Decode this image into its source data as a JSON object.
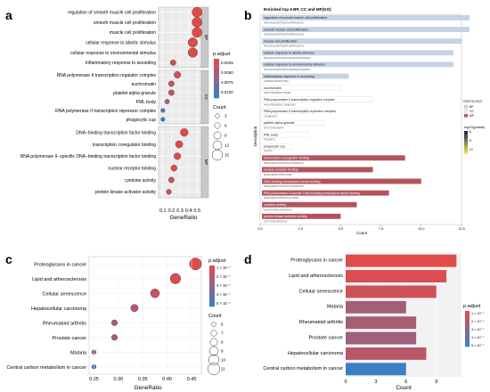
{
  "panel_labels": {
    "a": "a",
    "b": "b",
    "c": "c",
    "d": "d"
  },
  "panel_a": {
    "xlabel": "GeneRatio",
    "xticks": [
      "0.1",
      "0.2",
      "0.3",
      "0.4",
      "0.5"
    ],
    "legend_color_title": "p.adjust",
    "legend_color_ticks": [
      "0.0025",
      "0.0050",
      "0.0075",
      "0.0100"
    ],
    "legend_size_title": "Count",
    "legend_size_ticks": [
      "3",
      "6",
      "9",
      "12",
      "15"
    ]
  },
  "panel_b": {
    "title": "Enriched top 6 BP, CC and MF(GO)",
    "ylabel": "Description",
    "xlabel": "Count",
    "xticks": [
      "0.0",
      "2.5",
      "5.0",
      "7.5",
      "10.0",
      "12.5"
    ],
    "legend_ontology_title": "ONTOLOGY",
    "legend_ontology_items": [
      "BP",
      "CC",
      "MF"
    ],
    "legend_color_title": "-log10(pvalue)",
    "legend_color_ticks": [
      "6",
      "8",
      "10"
    ]
  },
  "panel_c": {
    "xlabel": "GeneRatio",
    "xticks": [
      "0.25",
      "0.30",
      "0.35",
      "0.40",
      "0.45"
    ],
    "legend_color_title": "p.adjust",
    "legend_color_ticks": [
      "1 × 10⁻⁷",
      "2 × 10⁻⁷",
      "3 × 10⁻⁷",
      "4 × 10⁻⁷",
      "5 × 10⁻⁷"
    ],
    "legend_size_title": "Count",
    "legend_size_ticks": [
      "6",
      "7",
      "8",
      "9",
      "10",
      "11"
    ]
  },
  "panel_d": {
    "xlabel": "Count",
    "xticks": [
      "0",
      "3",
      "6",
      "9"
    ],
    "legend_color_title": "p.adjust",
    "legend_color_ticks": [
      "1 × 10⁻⁷",
      "2 × 10⁻⁷",
      "3 × 10⁻⁷",
      "4 × 10⁻⁷",
      "5 × 10⁻⁷"
    ]
  },
  "chart_data": [
    {
      "type": "scatter",
      "panel": "a",
      "xlabel": "GeneRatio",
      "xlim": [
        0.05,
        0.55
      ],
      "groups": [
        {
          "name": "BP",
          "items": [
            {
              "label": "regulation of smooth muscle cell proliferation",
              "x": 0.5,
              "count": 14,
              "padj": 0.0003
            },
            {
              "label": "smooth muscle cell proliferation",
              "x": 0.5,
              "count": 14,
              "padj": 0.0003
            },
            {
              "label": "muscle cell proliferation",
              "x": 0.5,
              "count": 14,
              "padj": 0.0004
            },
            {
              "label": "cellular response to abiotic stimulus",
              "x": 0.45,
              "count": 13,
              "padj": 0.0005
            },
            {
              "label": "cellular response to environmental stimulus",
              "x": 0.45,
              "count": 13,
              "padj": 0.0005
            },
            {
              "label": "inflammatory response to wounding",
              "x": 0.22,
              "count": 6,
              "padj": 0.0012
            }
          ]
        },
        {
          "name": "CC",
          "items": [
            {
              "label": "RNA polymerase II transcription regulator complex",
              "x": 0.27,
              "count": 8,
              "padj": 0.0012
            },
            {
              "label": "euchromatin",
              "x": 0.2,
              "count": 6,
              "padj": 0.0015
            },
            {
              "label": "platelet alpha granule",
              "x": 0.2,
              "count": 6,
              "padj": 0.002
            },
            {
              "label": "PML body",
              "x": 0.15,
              "count": 4,
              "padj": 0.004
            },
            {
              "label": "RNA polymerase II transcription repressor complex",
              "x": 0.1,
              "count": 3,
              "padj": 0.009
            },
            {
              "label": "phagocytic cup",
              "x": 0.1,
              "count": 3,
              "padj": 0.011
            }
          ]
        },
        {
          "name": "MF",
          "items": [
            {
              "label": "DNA−binding transcription factor binding",
              "x": 0.35,
              "count": 10,
              "padj": 0.0002
            },
            {
              "label": "transcription coregulator binding",
              "x": 0.29,
              "count": 9,
              "padj": 0.0003
            },
            {
              "label": "RNA polymerase II−specific DNA−binding transcription factor binding",
              "x": 0.27,
              "count": 8,
              "padj": 0.0004
            },
            {
              "label": "nuclear receptor binding",
              "x": 0.23,
              "count": 7,
              "padj": 0.0005
            },
            {
              "label": "cytokine activity",
              "x": 0.2,
              "count": 6,
              "padj": 0.0007
            },
            {
              "label": "protein kinase activator activity",
              "x": 0.17,
              "count": 5,
              "padj": 0.001
            }
          ]
        }
      ]
    },
    {
      "type": "bar",
      "panel": "b",
      "title": "Enriched top 6 BP, CC and MF(GO)",
      "xlabel": "Count",
      "ylabel": "Description",
      "xlim": [
        0,
        12.5
      ],
      "bars": [
        {
          "label": "regulation of smooth muscle cell proliferation",
          "value": 13,
          "ontology": "BP",
          "sub": "HIF1A/IL6/IL6R/TP53/IGF1/PPARG/NOS3"
        },
        {
          "label": "smooth muscle cell proliferation",
          "value": 13,
          "ontology": "BP",
          "sub": "HIF1A/IL6/IL6R/TP53/IGF1/PPARG/NOS3"
        },
        {
          "label": "muscle cell proliferation",
          "value": 12.5,
          "ontology": "BP",
          "sub": "HIF1A/IL6/IL6R/TP53/IGF1/PPARG/NOS3"
        },
        {
          "label": "cellular response to abiotic stimulus",
          "value": 12,
          "ontology": "BP",
          "sub": "HIF1A/IL6/IL6R/TP53/IGF1/PPARG/NOS3/MAPK"
        },
        {
          "label": "cellular response to environmental stimulus",
          "value": 12,
          "ontology": "BP",
          "sub": "HIF1A/IL6/IL6R/TP53/IGF1/PPARG/NOS3/MAPK"
        },
        {
          "label": "inflammatory response to wounding",
          "value": 5.5,
          "ontology": "BP",
          "sub": "IL6/PPARG/NOS3/TGFB1"
        },
        {
          "label": "euchromatin",
          "value": 5,
          "ontology": "CC",
          "sub": "HIF1A/TP53/ESR1/CTNNB1"
        },
        {
          "label": "RNA polymerase II transcription regulator complex",
          "value": 7,
          "ontology": "CC",
          "sub": "HIF1A/TP53/ESR1/CTNNB1/MYC"
        },
        {
          "label": "RNA polymerase II transcription repressor complex",
          "value": 3,
          "ontology": "CC",
          "sub": "CTNNB1/MYC"
        },
        {
          "label": "platelet alpha granule",
          "value": 4,
          "ontology": "CC",
          "sub": "IGF1/TGFB1/VEGFA"
        },
        {
          "label": "PML body",
          "value": 3,
          "ontology": "CC",
          "sub": "TP53/SIRT1"
        },
        {
          "label": "phagocytic cup",
          "value": 2,
          "ontology": "CC",
          "sub": "TNF/PTK"
        },
        {
          "label": "transcription coregulator binding",
          "value": 9,
          "ontology": "MF",
          "sub": "PPARG/ESR1/TP53/HIF1A/CTNNB1/MYC"
        },
        {
          "label": "nuclear receptor binding",
          "value": 7,
          "ontology": "MF",
          "sub": "PPARG/ESR1/TP53/CTNNB1"
        },
        {
          "label": "DNA-binding transcription factor binding",
          "value": 10,
          "ontology": "MF",
          "sub": "PPARG/ESR1/TP53/HIF1A/CTNNB1/MYC"
        },
        {
          "label": "RNA polymerase II-specific DNA-binding transcription factor binding",
          "value": 8,
          "ontology": "MF",
          "sub": "PPARG/ESR1/TP53/HIF1A/CTNNB1"
        },
        {
          "label": "cytokine activity",
          "value": 6,
          "ontology": "MF",
          "sub": "IL6/TNF/TGFB1/VEGFA/IGF1"
        },
        {
          "label": "protein kinase activator activity",
          "value": 5,
          "ontology": "MF",
          "sub": "IGF1/TGFB1/VEGFA/IL6"
        }
      ]
    },
    {
      "type": "scatter",
      "panel": "c",
      "xlabel": "GeneRatio",
      "xlim": [
        0.24,
        0.47
      ],
      "items": [
        {
          "label": "Proteoglycans in cancer",
          "x": 0.458,
          "count": 11,
          "padj": 1e-07
        },
        {
          "label": "Lipid and atherosclerosis",
          "x": 0.417,
          "count": 10,
          "padj": 1.2e-07
        },
        {
          "label": "Cellular senescence",
          "x": 0.375,
          "count": 9,
          "padj": 1.5e-07
        },
        {
          "label": "Hepatocellular carcinoma",
          "x": 0.333,
          "count": 8,
          "padj": 2e-07
        },
        {
          "label": "Rheumatoid arthritis",
          "x": 0.292,
          "count": 7,
          "padj": 2.5e-07
        },
        {
          "label": "Prostate cancer",
          "x": 0.292,
          "count": 7,
          "padj": 2.6e-07
        },
        {
          "label": "Malaria",
          "x": 0.25,
          "count": 6,
          "padj": 3e-07
        },
        {
          "label": "Central carbon metabolism in cancer",
          "x": 0.25,
          "count": 6,
          "padj": 5e-07
        }
      ]
    },
    {
      "type": "bar",
      "panel": "d",
      "xlabel": "Count",
      "xlim": [
        0,
        11.5
      ],
      "bars": [
        {
          "label": "Proteoglycans in cancer",
          "value": 11,
          "padj": 1e-07
        },
        {
          "label": "Lipid and atherosclerosis",
          "value": 10,
          "padj": 1.2e-07
        },
        {
          "label": "Cellular senescence",
          "value": 9,
          "padj": 1.5e-07
        },
        {
          "label": "Malaria",
          "value": 6,
          "padj": 2.5e-07
        },
        {
          "label": "Rheumatoid arthritis",
          "value": 7,
          "padj": 2.4e-07
        },
        {
          "label": "Prostate cancer",
          "value": 7,
          "padj": 2.6e-07
        },
        {
          "label": "Hepatocellular carcinoma",
          "value": 8,
          "padj": 2e-07
        },
        {
          "label": "Central carbon metabolism in cancer",
          "value": 6,
          "padj": 5e-07
        }
      ]
    }
  ]
}
